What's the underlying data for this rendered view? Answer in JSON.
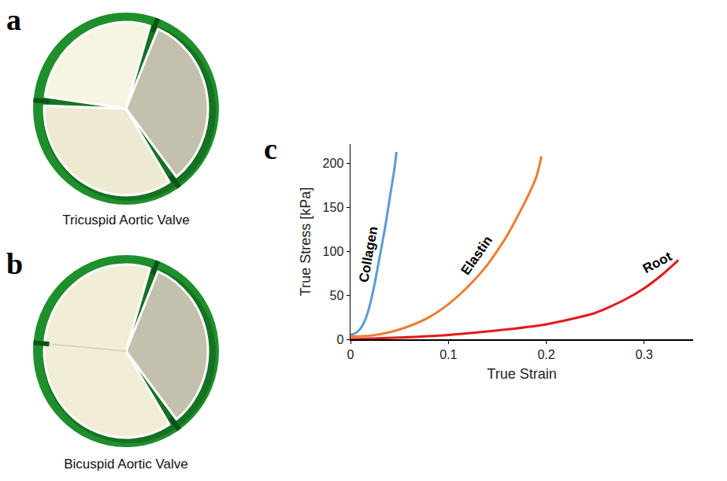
{
  "panels": [
    {
      "label": "a",
      "caption": "Tricuspid Aortic Valve"
    },
    {
      "label": "b",
      "caption": "Bicuspid Aortic Valve"
    },
    {
      "label": "c"
    }
  ],
  "chart_data": {
    "type": "line",
    "x_label": "True Strain",
    "y_label": "True Stress [kPa]",
    "xlim": [
      0,
      0.35
    ],
    "ylim": [
      0,
      222
    ],
    "xticks": [
      0,
      0.1,
      0.2,
      0.3
    ],
    "yticks": [
      0,
      50,
      100,
      150,
      200
    ],
    "grid": false,
    "series": [
      {
        "name": "Collagen",
        "color": "#5b9bd5",
        "x": [
          0,
          0.005,
          0.01,
          0.015,
          0.02,
          0.025,
          0.03,
          0.035,
          0.04,
          0.045,
          0.047
        ],
        "values": [
          5,
          7,
          12,
          22,
          40,
          65,
          95,
          125,
          160,
          195,
          213
        ]
      },
      {
        "name": "Elastin",
        "color": "#ed7d31",
        "x": [
          0,
          0.02,
          0.04,
          0.06,
          0.08,
          0.1,
          0.12,
          0.14,
          0.16,
          0.18,
          0.19,
          0.195
        ],
        "values": [
          3,
          4,
          8,
          15,
          25,
          40,
          60,
          85,
          118,
          160,
          185,
          208
        ]
      },
      {
        "name": "Root",
        "color": "#e41a1c",
        "x": [
          0,
          0.05,
          0.1,
          0.15,
          0.2,
          0.25,
          0.28,
          0.3,
          0.32,
          0.335
        ],
        "values": [
          0,
          2,
          5,
          10,
          17,
          30,
          45,
          58,
          75,
          90
        ]
      }
    ]
  }
}
